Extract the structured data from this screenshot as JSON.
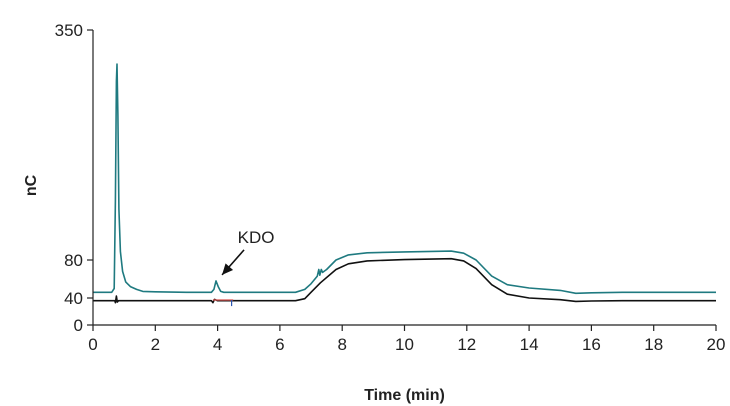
{
  "chart_data": {
    "type": "line",
    "title": "",
    "xlabel": "Time (min)",
    "ylabel": "nC",
    "xlim": [
      0,
      20
    ],
    "ylim": [
      0,
      350
    ],
    "x_ticks": [
      0,
      2,
      4,
      6,
      8,
      10,
      12,
      14,
      16,
      18,
      20
    ],
    "y_ticks": [
      0,
      40,
      80,
      350
    ],
    "grid": false,
    "legend": "none",
    "annotations": [
      {
        "text": "KDO",
        "x": 3.95,
        "y": 58
      }
    ],
    "series": [
      {
        "color": "#1f7a80",
        "points": [
          [
            0,
            46
          ],
          [
            0.6,
            46
          ],
          [
            0.68,
            50
          ],
          [
            0.72,
            150
          ],
          [
            0.75,
            290
          ],
          [
            0.77,
            310
          ],
          [
            0.8,
            250
          ],
          [
            0.83,
            140
          ],
          [
            0.88,
            90
          ],
          [
            0.95,
            68
          ],
          [
            1.05,
            57
          ],
          [
            1.2,
            52
          ],
          [
            1.4,
            49
          ],
          [
            1.6,
            47
          ],
          [
            2.0,
            46.5
          ],
          [
            3.0,
            46
          ],
          [
            3.8,
            46
          ],
          [
            3.88,
            49
          ],
          [
            3.95,
            58
          ],
          [
            4.02,
            52
          ],
          [
            4.1,
            47
          ],
          [
            4.2,
            46
          ],
          [
            6.0,
            46
          ],
          [
            6.5,
            46
          ],
          [
            6.8,
            49
          ],
          [
            7.0,
            55
          ],
          [
            7.2,
            63
          ],
          [
            7.25,
            70
          ],
          [
            7.28,
            64
          ],
          [
            7.33,
            70
          ],
          [
            7.37,
            67
          ],
          [
            7.5,
            70
          ],
          [
            7.8,
            80
          ],
          [
            8.2,
            86
          ],
          [
            8.8,
            88.5
          ],
          [
            10.0,
            89.5
          ],
          [
            11.5,
            90.5
          ],
          [
            11.9,
            88
          ],
          [
            12.3,
            80
          ],
          [
            12.8,
            63
          ],
          [
            13.3,
            54
          ],
          [
            14.0,
            50.5
          ],
          [
            15.0,
            48
          ],
          [
            15.5,
            45
          ],
          [
            16.0,
            45.5
          ],
          [
            17.0,
            46
          ],
          [
            20,
            46
          ]
        ]
      },
      {
        "color": "#111111",
        "points": [
          [
            0,
            36
          ],
          [
            0.7,
            36
          ],
          [
            0.72,
            33
          ],
          [
            0.75,
            42
          ],
          [
            0.78,
            34
          ],
          [
            0.82,
            36
          ],
          [
            2.0,
            36
          ],
          [
            3.8,
            36
          ],
          [
            3.85,
            33
          ],
          [
            3.9,
            38
          ],
          [
            4.0,
            36
          ],
          [
            6.0,
            36
          ],
          [
            6.5,
            36
          ],
          [
            6.8,
            39
          ],
          [
            7.0,
            46
          ],
          [
            7.3,
            56
          ],
          [
            7.8,
            70
          ],
          [
            8.2,
            76
          ],
          [
            8.8,
            79
          ],
          [
            10.0,
            80.5
          ],
          [
            11.5,
            81.5
          ],
          [
            11.9,
            79
          ],
          [
            12.3,
            71
          ],
          [
            12.8,
            54
          ],
          [
            13.3,
            44
          ],
          [
            14.0,
            40
          ],
          [
            15.0,
            37.5
          ],
          [
            15.5,
            35
          ],
          [
            16.0,
            35.5
          ],
          [
            17.0,
            36
          ],
          [
            20,
            36
          ]
        ]
      },
      {
        "color": "#d9534f",
        "points": [
          [
            3.85,
            37
          ],
          [
            4.5,
            37
          ]
        ]
      },
      {
        "color": "#2a55b0",
        "points": [
          [
            4.45,
            37
          ],
          [
            4.45,
            28
          ]
        ]
      }
    ]
  }
}
